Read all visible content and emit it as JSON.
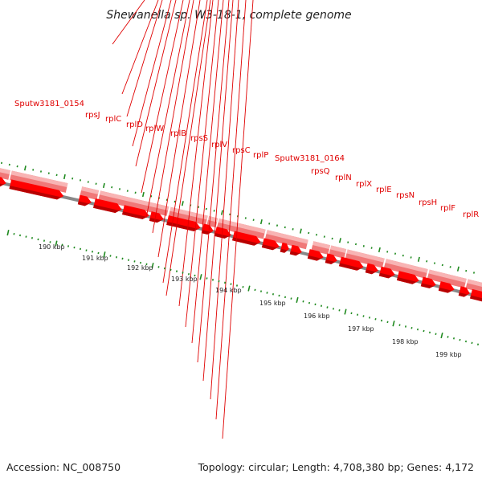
{
  "title": "Shewanella sp. W3-18-1, complete genome",
  "accession": "Accession: NC_008750",
  "topology": "Topology: circular; Length: 4,708,380 bp; Genes: 4,172",
  "colors": {
    "cds": "#ff0000",
    "cds_dark": "#b80000",
    "gene": "#f07878",
    "gene_light": "#f8b4b4",
    "label": "#e00000",
    "tick": "#1f8a1f",
    "backbone": "#888888",
    "text": "#222222"
  },
  "gene_labels": [
    "Sputw3181_0154",
    "rpsJ",
    "rplC",
    "rplD",
    "rplW",
    "rplB",
    "rpsS",
    "rplV",
    "rpsC",
    "rplP",
    "Sputw3181_0164",
    "rpsQ",
    "rplN",
    "rplX",
    "rplE",
    "rpsN",
    "rpsH",
    "rplF",
    "rplR"
  ],
  "scale_labels": [
    "190 kbp",
    "191 kbp",
    "192 kbp",
    "193 kbp",
    "194 kbp",
    "195 kbp",
    "196 kbp",
    "197 kbp",
    "198 kbp",
    "199 kbp"
  ]
}
